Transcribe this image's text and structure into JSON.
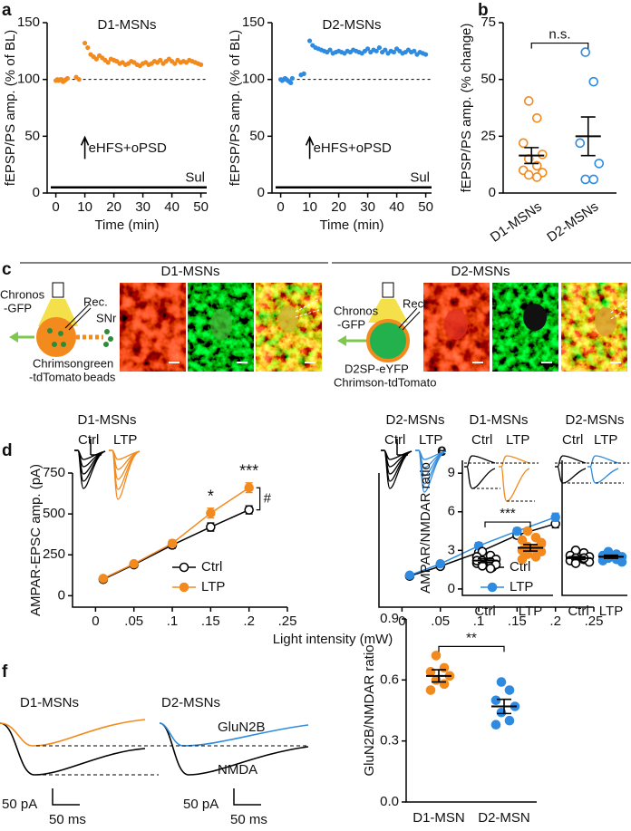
{
  "figure": {
    "panel_labels": [
      "a",
      "b",
      "c",
      "d",
      "e",
      "f"
    ],
    "panel_c": {
      "titles": [
        "D1-MSNs",
        "D2-MSNs"
      ],
      "d1_labels": [
        "Chronos",
        "-GFP",
        "Rec.",
        "SNr",
        "Chrimson",
        "-tdTomato",
        "green",
        "beads"
      ],
      "d2_labels": [
        "Chronos",
        "-GFP",
        "Rec.",
        "D2SP-eYFP",
        "Chrimson-tdTomato"
      ]
    },
    "panel_d": {
      "inset_labels": [
        "Ctrl",
        "LTP",
        "Ctrl",
        "LTP"
      ]
    },
    "panel_e": {
      "inset_labels": [
        "Ctrl",
        "LTP",
        "Ctrl",
        "LTP"
      ]
    },
    "panel_f": {
      "titles": [
        "D1-MSNs",
        "D2-MSNs"
      ],
      "trace_labels": [
        "GluN2B",
        "NMDA"
      ],
      "scale": [
        "50 pA",
        "50 ms",
        "50 pA",
        "50 ms"
      ]
    }
  },
  "chart_data": [
    {
      "type": "scatter",
      "title": "D1-MSNs",
      "xlabel": "Time (min)",
      "ylabel": "fEPSP/PS amp. (% of BL)",
      "xlim": [
        -3,
        52
      ],
      "xticks": [
        0,
        10,
        20,
        30,
        40,
        50
      ],
      "ylim": [
        0,
        150
      ],
      "yticks": [
        0,
        50,
        100,
        150
      ],
      "color": "#f28a1e",
      "hline": 100,
      "arrow_x": 10,
      "annotation": "eHFS+oPSD",
      "drug": "Sul",
      "drug_y": 5,
      "x": [
        0,
        0.5,
        1,
        1.5,
        2,
        2.5,
        3,
        3.5,
        4,
        7,
        8,
        10,
        11,
        12,
        13,
        14,
        15,
        16,
        17,
        18,
        19,
        20,
        21,
        22,
        23,
        24,
        25,
        26,
        27,
        28,
        29,
        30,
        31,
        32,
        33,
        34,
        35,
        36,
        37,
        38,
        39,
        40,
        41,
        42,
        43,
        44,
        45,
        46,
        47,
        48,
        49,
        50
      ],
      "values": [
        99,
        100,
        99,
        100,
        100,
        98,
        99,
        100,
        101,
        102,
        100,
        132,
        128,
        122,
        120,
        118,
        121,
        119,
        117,
        115,
        118,
        117,
        116,
        114,
        115,
        113,
        114,
        116,
        115,
        113,
        112,
        114,
        115,
        113,
        114,
        116,
        115,
        117,
        114,
        116,
        118,
        116,
        114,
        117,
        115,
        116,
        115,
        117,
        116,
        115,
        114,
        113
      ]
    },
    {
      "type": "scatter",
      "title": "D2-MSNs",
      "xlabel": "Time (min)",
      "ylabel": "fEPSP/PS amp. (% of BL)",
      "xlim": [
        -3,
        52
      ],
      "xticks": [
        0,
        10,
        20,
        30,
        40,
        50
      ],
      "ylim": [
        0,
        150
      ],
      "yticks": [
        0,
        50,
        100,
        150
      ],
      "color": "#2f8be0",
      "hline": 100,
      "arrow_x": 10,
      "annotation": "eHFS+oPSD",
      "drug": "Sul",
      "drug_y": 5,
      "x": [
        0,
        0.5,
        1,
        1.5,
        2,
        2.5,
        3,
        3.5,
        4,
        7,
        8,
        10,
        11,
        12,
        13,
        14,
        15,
        16,
        17,
        18,
        19,
        20,
        21,
        22,
        23,
        24,
        25,
        26,
        27,
        28,
        29,
        30,
        31,
        32,
        33,
        34,
        35,
        36,
        37,
        38,
        39,
        40,
        41,
        42,
        43,
        44,
        45,
        46,
        47,
        48,
        49,
        50
      ],
      "values": [
        100,
        99,
        100,
        101,
        100,
        99,
        98,
        97,
        101,
        104,
        105,
        134,
        130,
        128,
        127,
        126,
        125,
        124,
        126,
        123,
        124,
        125,
        124,
        123,
        125,
        124,
        126,
        125,
        124,
        123,
        125,
        127,
        124,
        126,
        125,
        128,
        124,
        126,
        123,
        125,
        124,
        127,
        125,
        123,
        124,
        126,
        124,
        125,
        122,
        124,
        123,
        122
      ]
    },
    {
      "type": "dot",
      "ylabel": "fEPSP/PS amp. (% change)",
      "categories": [
        "D1-MSNs",
        "D2-MSNs"
      ],
      "colors": [
        "#f28a1e",
        "#2f8be0"
      ],
      "markers": [
        "open",
        "open"
      ],
      "ylim": [
        0,
        75
      ],
      "yticks": [
        0,
        25,
        50,
        75
      ],
      "points": [
        [
          40.5,
          33,
          22,
          17,
          15,
          12,
          10,
          9,
          8,
          7
        ],
        [
          62,
          49,
          22,
          13,
          6,
          6
        ]
      ],
      "means": [
        16.5,
        25
      ],
      "sems": [
        3.5,
        8.5
      ],
      "bracket": "n.s."
    },
    {
      "type": "line",
      "title": "D1-MSNs",
      "xlabel": "Light intensity (mW)",
      "ylabel": "AMPAR-EPSC amp. (pA)",
      "xlim": [
        -0.03,
        0.25
      ],
      "xticks": [
        0,
        {
          "value": 0.05,
          "label": ".05"
        },
        {
          "value": 0.1,
          "label": ".1"
        },
        {
          "value": 0.15,
          "label": ".15"
        },
        {
          "value": 0.2,
          "label": ".2"
        },
        {
          "value": 0.25,
          "label": ".25"
        }
      ],
      "ylim": [
        -70,
        750
      ],
      "yticks": [
        0,
        250,
        500,
        750
      ],
      "x": [
        0.01,
        0.05,
        0.1,
        0.15,
        0.2
      ],
      "series": [
        {
          "name": "Ctrl",
          "color": "#000000",
          "marker": "open",
          "values": [
            100,
            190,
            310,
            420,
            525
          ],
          "errors": [
            15,
            15,
            20,
            25,
            25
          ]
        },
        {
          "name": "LTP",
          "color": "#f28a1e",
          "marker": "filled",
          "values": [
            105,
            195,
            320,
            505,
            660
          ],
          "errors": [
            15,
            15,
            20,
            30,
            30
          ]
        }
      ],
      "annotations": [
        {
          "x": 0.15,
          "text": "*"
        },
        {
          "x": 0.2,
          "text": "***"
        }
      ],
      "bracket": "#"
    },
    {
      "type": "line",
      "title": "D2-MSNs",
      "xlim": [
        -0.03,
        0.25
      ],
      "xticks": [
        0,
        {
          "value": 0.05,
          "label": ".05"
        },
        {
          "value": 0.1,
          "label": ".1"
        },
        {
          "value": 0.15,
          "label": ".15"
        },
        {
          "value": 0.2,
          "label": ".2"
        },
        {
          "value": 0.25,
          "label": ".25"
        }
      ],
      "ylim": [
        -70,
        750
      ],
      "x": [
        0.01,
        0.05,
        0.1,
        0.15,
        0.2
      ],
      "series": [
        {
          "name": "Ctrl",
          "color": "#000000",
          "marker": "open",
          "values": [
            120,
            180,
            265,
            370,
            440
          ],
          "errors": [
            10,
            15,
            15,
            20,
            25
          ]
        },
        {
          "name": "LTP",
          "color": "#2f8be0",
          "marker": "filled",
          "values": [
            125,
            195,
            305,
            395,
            480
          ],
          "errors": [
            10,
            15,
            20,
            20,
            25
          ]
        }
      ]
    },
    {
      "type": "dot",
      "title": "D1-MSNs",
      "ylabel": "AMPAR/NMDAR ratio",
      "categories": [
        "Ctrl",
        "LTP"
      ],
      "colors": [
        "#000000",
        "#f28a1e"
      ],
      "markers": [
        "open",
        "filled"
      ],
      "ylim": [
        -0.5,
        10
      ],
      "yticks": [
        0,
        3,
        6,
        9
      ],
      "points": [
        [
          2.9,
          2.6,
          2.5,
          2.3,
          2.2,
          2.1,
          2.0,
          1.9,
          1.8,
          1.6,
          2.2
        ],
        [
          4.5,
          4.0,
          3.8,
          3.5,
          3.3,
          3.1,
          3.0,
          2.9,
          2.7,
          2.5,
          2.3,
          3.6
        ]
      ],
      "means": [
        2.2,
        3.2
      ],
      "sems": [
        0.15,
        0.25
      ],
      "bracket": "***"
    },
    {
      "type": "dot",
      "title": "D2-MSNs",
      "categories": [
        "Ctrl",
        "LTP"
      ],
      "colors": [
        "#000000",
        "#2f8be0"
      ],
      "markers": [
        "open",
        "filled"
      ],
      "ylim": [
        -0.5,
        10
      ],
      "points": [
        [
          3.0,
          2.8,
          2.6,
          2.5,
          2.4,
          2.3,
          2.2,
          2.1,
          2.0,
          2.4
        ],
        [
          2.9,
          2.7,
          2.6,
          2.5,
          2.4,
          2.3,
          2.2,
          2.1,
          2.8,
          2.5
        ]
      ],
      "means": [
        2.4,
        2.5
      ],
      "sems": [
        0.12,
        0.12
      ]
    },
    {
      "type": "dot",
      "ylabel": "GluN2B/NMDAR ratio",
      "categories": [
        "D1-MSN",
        "D2-MSN"
      ],
      "colors": [
        "#f28a1e",
        "#2f8be0"
      ],
      "markers": [
        "filled",
        "filled"
      ],
      "ylim": [
        0,
        0.9
      ],
      "yticks": [
        {
          "value": 0,
          "label": "0.0"
        },
        0.3,
        0.6,
        0.9
      ],
      "points": [
        [
          0.72,
          0.66,
          0.64,
          0.62,
          0.6,
          0.58,
          0.55
        ],
        [
          0.59,
          0.55,
          0.5,
          0.47,
          0.44,
          0.4,
          0.38
        ]
      ],
      "means": [
        0.62,
        0.47
      ],
      "sems": [
        0.03,
        0.035
      ],
      "bracket": "**"
    }
  ]
}
